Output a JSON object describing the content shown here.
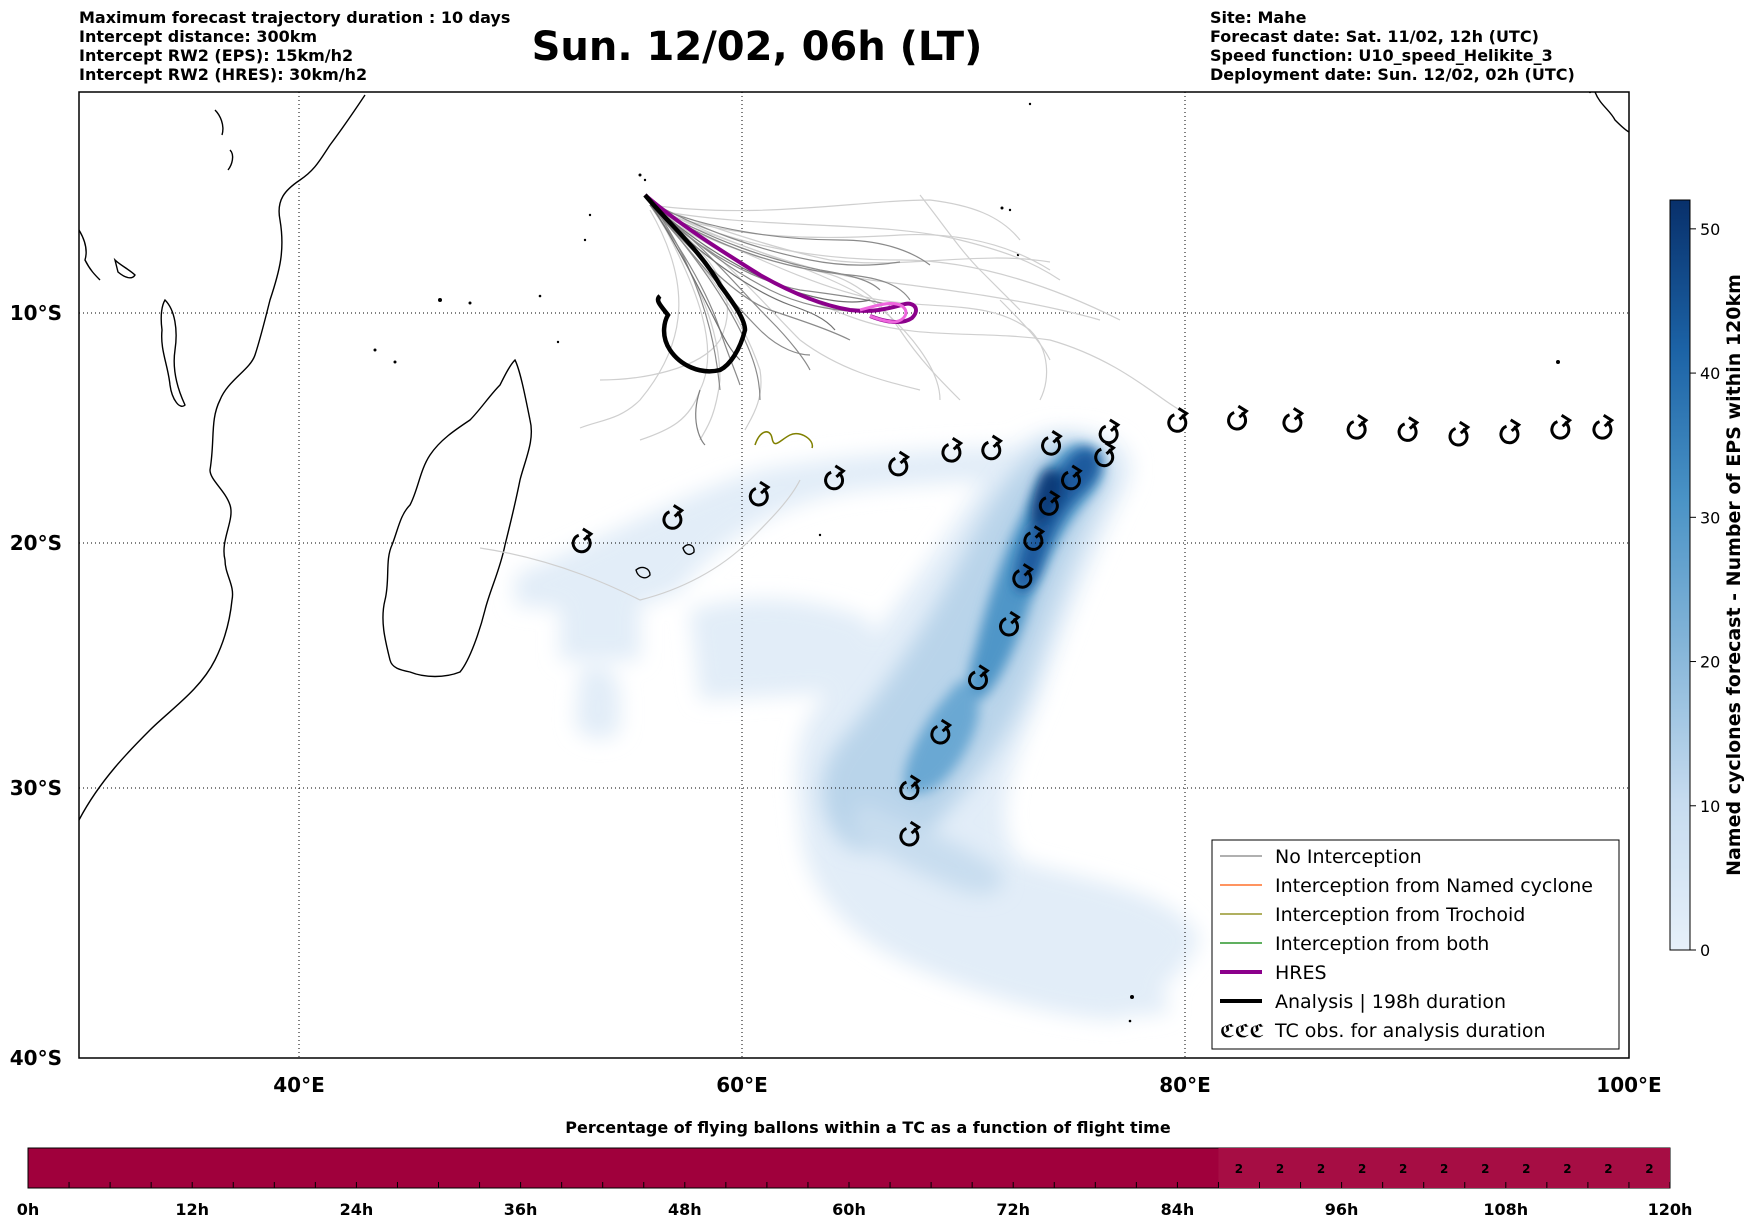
{
  "header_left": [
    "Maximum forecast trajectory duration : 10 days",
    "Intercept distance: 300km",
    "Intercept RW2 (EPS):  15km/h2",
    "Intercept RW2 (HRES): 30km/h2"
  ],
  "title": "Sun. 12/02, 06h (LT)",
  "header_right": [
    "Site: Mahe",
    "Forecast date: Sat. 11/02, 12h (UTC)",
    "Speed function: U10_speed_Helikite_3",
    "Deployment date: Sun. 12/02, 02h (UTC)"
  ],
  "map": {
    "lon_range": [
      30,
      100
    ],
    "lat_range": [
      -40,
      0
    ],
    "lon_ticks": [
      {
        "value": 40,
        "label": "40°E"
      },
      {
        "value": 60,
        "label": "60°E"
      },
      {
        "value": 80,
        "label": "80°E"
      },
      {
        "value": 100,
        "label": "100°E"
      }
    ],
    "lat_ticks": [
      {
        "value": -10,
        "label": "10°S"
      },
      {
        "value": -20,
        "label": "20°S"
      },
      {
        "value": -30,
        "label": "30°S"
      },
      {
        "value": -40,
        "label": "40°S"
      }
    ],
    "grid": "dotted",
    "tc_obs_positions": [
      [
        52.7,
        -20.0
      ],
      [
        56.8,
        -19.0
      ],
      [
        60.7,
        -18.0
      ],
      [
        64.1,
        -17.3
      ],
      [
        67.0,
        -16.7
      ],
      [
        69.4,
        -16.1
      ],
      [
        71.2,
        -16.0
      ],
      [
        73.9,
        -15.8
      ],
      [
        76.5,
        -15.3
      ],
      [
        79.6,
        -14.8
      ],
      [
        82.3,
        -14.7
      ],
      [
        84.8,
        -14.8
      ],
      [
        87.7,
        -15.1
      ],
      [
        90.0,
        -15.2
      ],
      [
        92.3,
        -15.4
      ],
      [
        94.6,
        -15.3
      ],
      [
        96.9,
        -15.1
      ],
      [
        98.8,
        -15.1
      ],
      [
        76.3,
        -16.3
      ],
      [
        74.8,
        -17.3
      ],
      [
        73.8,
        -18.4
      ],
      [
        73.1,
        -19.9
      ],
      [
        72.6,
        -21.5
      ],
      [
        72.0,
        -23.5
      ],
      [
        70.6,
        -25.7
      ],
      [
        68.9,
        -27.9
      ],
      [
        67.5,
        -30.1
      ],
      [
        67.5,
        -31.9
      ]
    ]
  },
  "colorbar": {
    "label": "Named cyclones forecast - Number of EPS within 120km",
    "range": [
      0,
      52
    ],
    "ticks": [
      0,
      10,
      20,
      30,
      40,
      50
    ],
    "colors": [
      "#e2edf8",
      "#08306b"
    ]
  },
  "legend": {
    "position": "lower-right",
    "items": [
      {
        "label": "No Interception",
        "color": "#808080",
        "style": "thin-line"
      },
      {
        "label": "Interception from Named cyclone",
        "color": "#ff5500",
        "style": "thin-line"
      },
      {
        "label": "Interception from Trochoid",
        "color": "#808000",
        "style": "thin-line"
      },
      {
        "label": "Interception from both",
        "color": "#008000",
        "style": "thin-line"
      },
      {
        "label": "HRES",
        "color": "#8b008b",
        "style": "thick-line"
      },
      {
        "label": "Analysis | 198h duration",
        "color": "#000000",
        "style": "thick-line"
      },
      {
        "label": "TC obs. for analysis duration",
        "color": "#000000",
        "style": "tc-symbol",
        "symbol": "ℭℭℭ"
      }
    ]
  },
  "time_bar": {
    "title": "Percentage of flying ballons within a TC as a function of flight time",
    "tick_labels": [
      "0h",
      "12h",
      "24h",
      "36h",
      "48h",
      "60h",
      "72h",
      "84h",
      "96h",
      "108h",
      "120h"
    ],
    "filled_from_hour": 87,
    "filled_value": "2",
    "filled_cells": 11,
    "base_color": "#a0003c",
    "filled_color": "#a60d44"
  }
}
